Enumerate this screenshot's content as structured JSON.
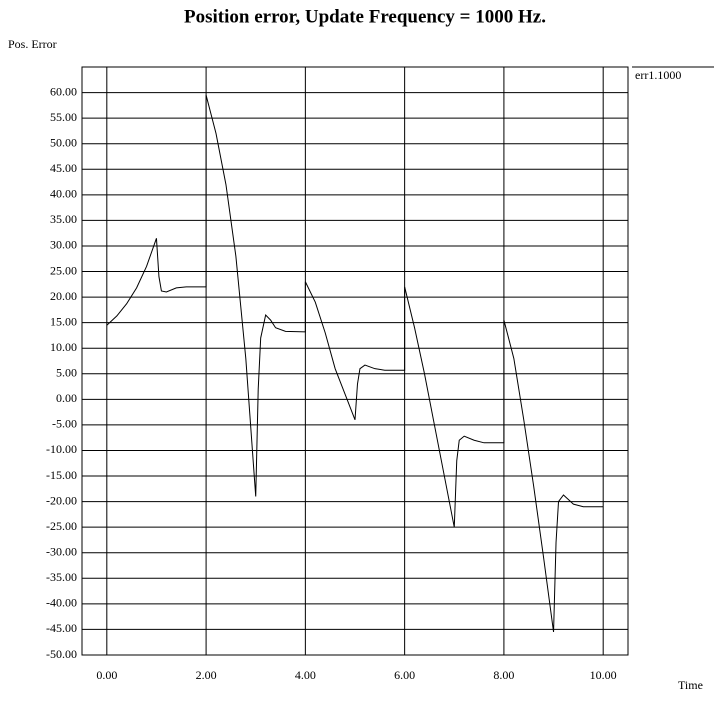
{
  "chart_data": {
    "type": "line",
    "title": "Position error, Update Frequency = 1000 Hz.",
    "y_label": "Pos. Error",
    "x_label": "Time",
    "x": [
      0,
      0.2,
      0.4,
      0.6,
      0.8,
      1.0,
      1.05,
      1.1,
      1.2,
      1.4,
      1.6,
      2.0,
      2.0,
      2.2,
      2.4,
      2.6,
      2.8,
      3.0,
      3.05,
      3.1,
      3.2,
      3.3,
      3.4,
      3.6,
      4.0,
      4.0,
      4.2,
      4.4,
      4.6,
      4.8,
      5.0,
      5.05,
      5.1,
      5.2,
      5.4,
      5.6,
      6.0,
      6.0,
      6.2,
      6.4,
      6.6,
      6.8,
      7.0,
      7.05,
      7.1,
      7.2,
      7.4,
      7.6,
      8.0,
      8.0,
      8.2,
      8.4,
      8.6,
      8.8,
      9.0,
      9.05,
      9.1,
      9.2,
      9.4,
      9.6,
      10.0
    ],
    "series": [
      {
        "name": "err1.1000",
        "color": "#000000",
        "values": [
          14.5,
          16.3,
          18.7,
          21.8,
          26,
          31.5,
          24,
          21.2,
          21,
          21.8,
          22,
          22,
          59.5,
          52,
          42,
          28,
          8,
          -19,
          2,
          12,
          16.5,
          15.5,
          14,
          13.3,
          13.2,
          23,
          19,
          13,
          6,
          1,
          -4,
          3,
          6,
          6.7,
          6,
          5.7,
          5.7,
          22,
          14,
          5,
          -5,
          -15,
          -25,
          -12,
          -8,
          -7.2,
          -8,
          -8.5,
          -8.5,
          15.5,
          8,
          -4,
          -17,
          -31,
          -45.5,
          -28,
          -20,
          -18.7,
          -20.5,
          -21,
          -21
        ]
      }
    ],
    "xlim": [
      -0.5,
      10.5
    ],
    "ylim": [
      -50,
      65
    ],
    "xticks": [
      {
        "value": 0,
        "label": "0.00"
      },
      {
        "value": 2,
        "label": "2.00"
      },
      {
        "value": 4,
        "label": "4.00"
      },
      {
        "value": 6,
        "label": "6.00"
      },
      {
        "value": 8,
        "label": "8.00"
      },
      {
        "value": 10,
        "label": "10.00"
      }
    ],
    "yticks": [
      {
        "value": 60,
        "label": "60.00"
      },
      {
        "value": 55,
        "label": "55.00"
      },
      {
        "value": 50,
        "label": "50.00"
      },
      {
        "value": 45,
        "label": "45.00"
      },
      {
        "value": 40,
        "label": "40.00"
      },
      {
        "value": 35,
        "label": "35.00"
      },
      {
        "value": 30,
        "label": "30.00"
      },
      {
        "value": 25,
        "label": "25.00"
      },
      {
        "value": 20,
        "label": "20.00"
      },
      {
        "value": 15,
        "label": "15.00"
      },
      {
        "value": 10,
        "label": "10.00"
      },
      {
        "value": 5,
        "label": "5.00"
      },
      {
        "value": 0,
        "label": "0.00"
      },
      {
        "value": -5,
        "label": "-5.00"
      },
      {
        "value": -10,
        "label": "-10.00"
      },
      {
        "value": -15,
        "label": "-15.00"
      },
      {
        "value": -20,
        "label": "-20.00"
      },
      {
        "value": -25,
        "label": "-25.00"
      },
      {
        "value": -30,
        "label": "-30.00"
      },
      {
        "value": -35,
        "label": "-35.00"
      },
      {
        "value": -40,
        "label": "-40.00"
      },
      {
        "value": -45,
        "label": "-45.00"
      },
      {
        "value": -50,
        "label": "-50.00"
      }
    ],
    "grid": true,
    "legend": "top-right"
  }
}
